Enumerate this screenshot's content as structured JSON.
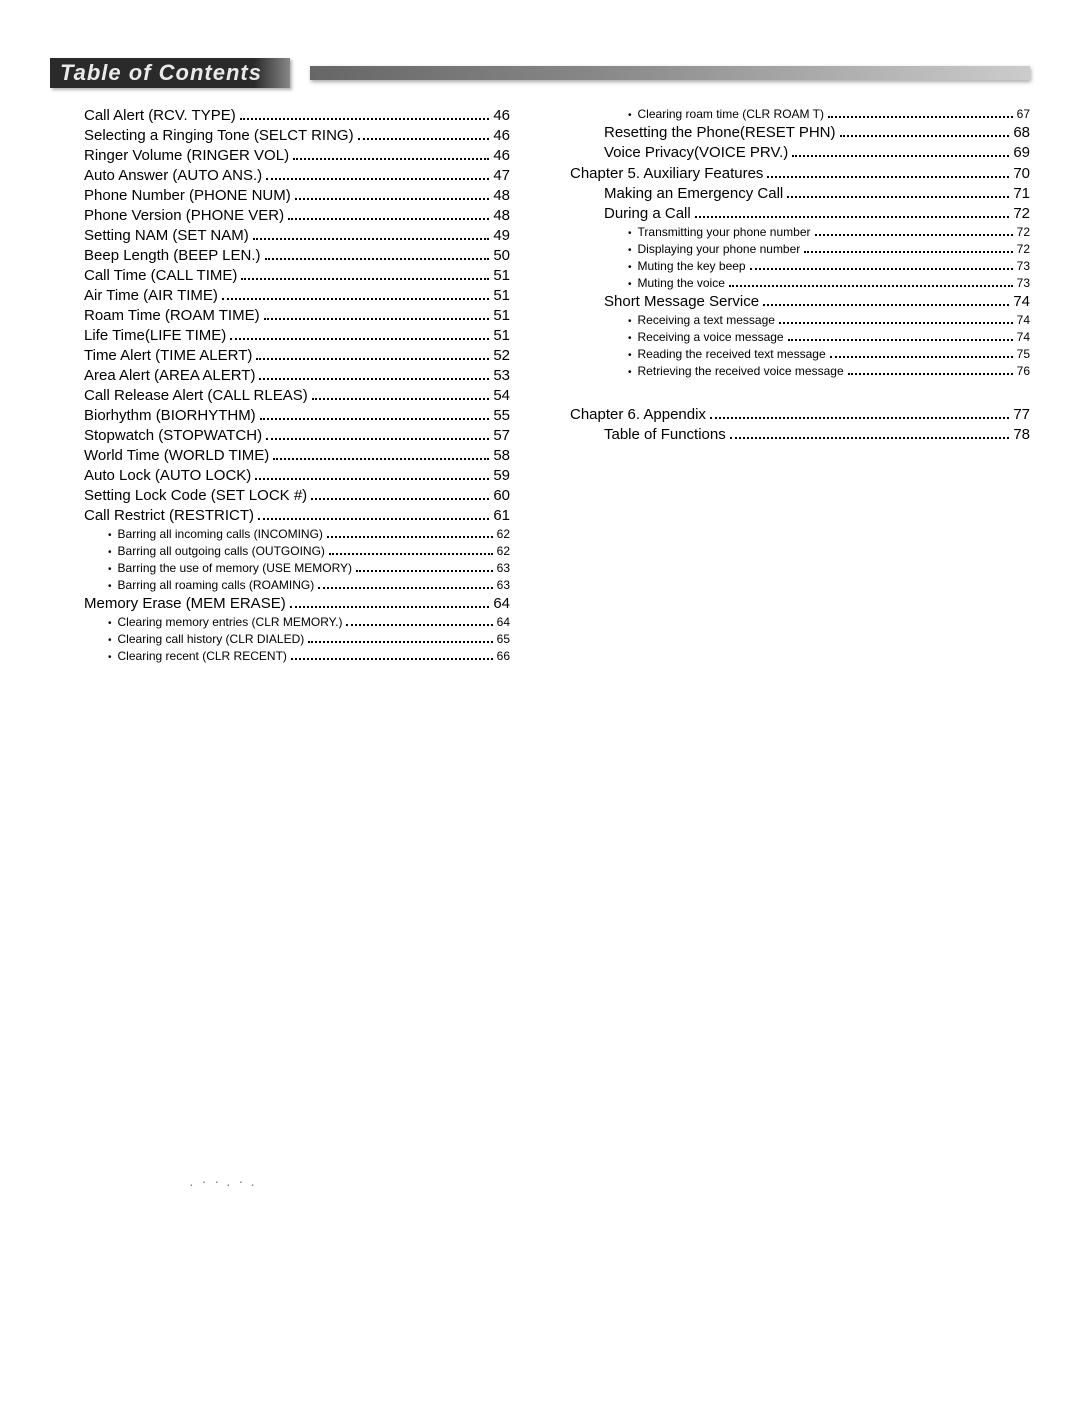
{
  "title": "Table of Contents",
  "columns": [
    {
      "items": [
        {
          "level": "section",
          "label": "Call Alert (RCV. TYPE)",
          "page": "46"
        },
        {
          "level": "section",
          "label": "Selecting a Ringing Tone (SELCT RING)",
          "page": "46"
        },
        {
          "level": "section",
          "label": "Ringer Volume (RINGER VOL)",
          "page": "46"
        },
        {
          "level": "section",
          "label": "Auto Answer (AUTO ANS.)",
          "page": "47"
        },
        {
          "level": "section",
          "label": "Phone Number (PHONE NUM)",
          "page": "48"
        },
        {
          "level": "section",
          "label": "Phone Version (PHONE VER)",
          "page": "48"
        },
        {
          "level": "section",
          "label": "Setting NAM (SET NAM)",
          "page": "49"
        },
        {
          "level": "section",
          "label": "Beep Length (BEEP LEN.)",
          "page": "50"
        },
        {
          "level": "section",
          "label": "Call Time (CALL TIME)",
          "page": "51"
        },
        {
          "level": "section",
          "label": "Air Time (AIR TIME)",
          "page": "51"
        },
        {
          "level": "section",
          "label": "Roam Time (ROAM TIME)",
          "page": "51"
        },
        {
          "level": "section",
          "label": "Life Time(LIFE TIME)",
          "page": "51"
        },
        {
          "level": "section",
          "label": "Time Alert (TIME ALERT)",
          "page": "52"
        },
        {
          "level": "section",
          "label": "Area Alert (AREA ALERT)",
          "page": "53"
        },
        {
          "level": "section",
          "label": "Call Release Alert (CALL RLEAS)",
          "page": "54"
        },
        {
          "level": "section",
          "label": "Biorhythm (BIORHYTHM)",
          "page": "55"
        },
        {
          "level": "section",
          "label": "Stopwatch (STOPWATCH)",
          "page": "57"
        },
        {
          "level": "section",
          "label": "World Time (WORLD TIME)",
          "page": "58"
        },
        {
          "level": "section",
          "label": "Auto Lock (AUTO LOCK)",
          "page": "59"
        },
        {
          "level": "section",
          "label": "Setting Lock Code (SET LOCK #)",
          "page": "60"
        },
        {
          "level": "section",
          "label": "Call Restrict (RESTRICT)",
          "page": "61"
        },
        {
          "level": "sub",
          "label": "Barring all incoming calls (INCOMING)",
          "page": "62"
        },
        {
          "level": "sub",
          "label": "Barring all outgoing calls (OUTGOING)",
          "page": "62"
        },
        {
          "level": "sub",
          "label": "Barring the use of memory (USE MEMORY)",
          "page": "63"
        },
        {
          "level": "sub",
          "label": "Barring all roaming calls (ROAMING)",
          "page": "63"
        },
        {
          "level": "section",
          "label": "Memory Erase (MEM ERASE)",
          "page": "64"
        },
        {
          "level": "sub",
          "label": "Clearing memory entries (CLR MEMORY.)",
          "page": "64"
        },
        {
          "level": "sub",
          "label": "Clearing call history (CLR DIALED)",
          "page": "65"
        },
        {
          "level": "sub",
          "label": "Clearing recent (CLR RECENT)",
          "page": "66"
        }
      ]
    },
    {
      "items": [
        {
          "level": "sub",
          "label": "Clearing roam time (CLR ROAM T)",
          "page": "67"
        },
        {
          "level": "section",
          "label": "Resetting the Phone(RESET PHN)",
          "page": "68"
        },
        {
          "level": "section",
          "label": "Voice Privacy(VOICE PRV.)",
          "page": "69"
        },
        {
          "level": "chapter",
          "label": "Chapter 5. Auxiliary Features",
          "page": "70"
        },
        {
          "level": "section",
          "label": "Making an Emergency Call",
          "page": "71"
        },
        {
          "level": "section",
          "label": "During a Call",
          "page": "72"
        },
        {
          "level": "sub",
          "label": "Transmitting your phone number",
          "page": "72"
        },
        {
          "level": "sub",
          "label": "Displaying your phone number",
          "page": "72"
        },
        {
          "level": "sub",
          "label": "Muting the key beep",
          "page": "73"
        },
        {
          "level": "sub",
          "label": "Muting the voice",
          "page": "73"
        },
        {
          "level": "section",
          "label": "Short Message Service",
          "page": "74"
        },
        {
          "level": "sub",
          "label": "Receiving a text message",
          "page": "74"
        },
        {
          "level": "sub",
          "label": "Receiving a voice message",
          "page": "74"
        },
        {
          "level": "sub",
          "label": "Reading the received text message",
          "page": "75"
        },
        {
          "level": "sub",
          "label": "Retrieving the received voice message",
          "page": "76"
        },
        {
          "level": "chapter",
          "extraGap": true,
          "label": "Chapter 6. Appendix",
          "page": "77"
        },
        {
          "level": "section",
          "label": "Table of Functions",
          "page": "78"
        }
      ]
    }
  ],
  "footer_specks": ". ·       ·      . · ."
}
